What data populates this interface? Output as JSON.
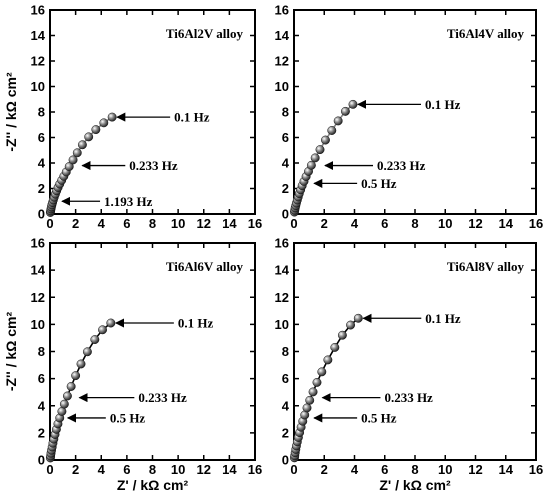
{
  "chart_data": [
    {
      "type": "scatter",
      "panel_label": "Ti6Al2V alloy",
      "xlabel": "",
      "ylabel": "-Z'' / kΩ cm²",
      "xlim": [
        0,
        16
      ],
      "ylim": [
        0,
        16
      ],
      "xticks": [
        "0",
        "2",
        "4",
        "6",
        "8",
        "10",
        "12",
        "14",
        "16"
      ],
      "yticks": [
        "0",
        "2",
        "4",
        "6",
        "8",
        "10",
        "12",
        "14",
        "16"
      ],
      "line_color": "#808080",
      "series": [
        {
          "x": [
            0.03,
            0.05,
            0.08,
            0.11,
            0.15,
            0.2,
            0.26,
            0.33,
            0.42,
            0.52,
            0.63,
            0.76,
            0.91,
            1.08,
            1.27,
            1.5,
            1.8,
            2.13,
            2.53,
            3.02,
            3.58,
            4.2,
            4.85
          ],
          "y": [
            0.12,
            0.25,
            0.4,
            0.55,
            0.72,
            0.9,
            1.1,
            1.32,
            1.56,
            1.82,
            2.08,
            2.35,
            2.64,
            2.96,
            3.3,
            3.72,
            4.24,
            4.8,
            5.43,
            6.05,
            6.62,
            7.15,
            7.6
          ]
        }
      ],
      "annotations": [
        {
          "text": "0.1 Hz",
          "x": 4.85,
          "y": 7.6
        },
        {
          "text": "0.233 Hz",
          "x": 2.13,
          "y": 3.8
        },
        {
          "text": "1.193 Hz",
          "x": 0.55,
          "y": 1.0
        }
      ]
    },
    {
      "type": "scatter",
      "panel_label": "Ti6Al4V alloy",
      "xlabel": "",
      "ylabel": "",
      "xlim": [
        0,
        16
      ],
      "ylim": [
        0,
        16
      ],
      "xticks": [
        "0",
        "2",
        "4",
        "6",
        "8",
        "10",
        "12",
        "14",
        "16"
      ],
      "yticks": [
        "0",
        "2",
        "4",
        "6",
        "8",
        "10",
        "12",
        "14",
        "16"
      ],
      "line_color": "#808080",
      "series": [
        {
          "x": [
            0.03,
            0.05,
            0.08,
            0.12,
            0.16,
            0.22,
            0.28,
            0.35,
            0.44,
            0.54,
            0.66,
            0.8,
            0.96,
            1.15,
            1.4,
            1.72,
            2.08,
            2.5,
            2.92,
            3.4,
            3.9
          ],
          "y": [
            0.15,
            0.3,
            0.48,
            0.66,
            0.86,
            1.1,
            1.34,
            1.6,
            1.9,
            2.22,
            2.56,
            2.94,
            3.34,
            3.82,
            4.4,
            5.05,
            5.8,
            6.55,
            7.3,
            8.05,
            8.6
          ]
        }
      ],
      "annotations": [
        {
          "text": "0.1 Hz",
          "x": 3.9,
          "y": 8.6
        },
        {
          "text": "0.233 Hz",
          "x": 1.72,
          "y": 3.8
        },
        {
          "text": "0.5 Hz",
          "x": 1.0,
          "y": 2.4
        }
      ]
    },
    {
      "type": "scatter",
      "panel_label": "Ti6Al6V alloy",
      "xlabel": "Z' / kΩ cm²",
      "ylabel": "-Z'' / kΩ cm²",
      "xlim": [
        0,
        16
      ],
      "ylim": [
        0,
        16
      ],
      "xticks": [
        "0",
        "2",
        "4",
        "6",
        "8",
        "10",
        "12",
        "14",
        "16"
      ],
      "yticks": [
        "0",
        "2",
        "4",
        "6",
        "8",
        "10",
        "12",
        "14",
        "16"
      ],
      "line_color": "#000000",
      "series": [
        {
          "x": [
            0.03,
            0.05,
            0.08,
            0.12,
            0.17,
            0.23,
            0.3,
            0.39,
            0.5,
            0.62,
            0.76,
            0.93,
            1.12,
            1.36,
            1.65,
            2.0,
            2.42,
            2.92,
            3.5,
            4.1,
            4.75
          ],
          "y": [
            0.15,
            0.3,
            0.5,
            0.72,
            0.96,
            1.24,
            1.54,
            1.88,
            2.26,
            2.66,
            3.1,
            3.58,
            4.12,
            4.72,
            5.42,
            6.22,
            7.08,
            7.98,
            8.88,
            9.6,
            10.1
          ]
        }
      ],
      "annotations": [
        {
          "text": "0.1 Hz",
          "x": 4.75,
          "y": 10.1
        },
        {
          "text": "0.233 Hz",
          "x": 1.9,
          "y": 4.6
        },
        {
          "text": "0.5 Hz",
          "x": 1.0,
          "y": 3.1
        }
      ]
    },
    {
      "type": "scatter",
      "panel_label": "Ti6Al8V alloy",
      "xlabel": "Z' / kΩ cm²",
      "ylabel": "",
      "xlim": [
        0,
        16
      ],
      "ylim": [
        0,
        16
      ],
      "xticks": [
        "0",
        "2",
        "4",
        "6",
        "8",
        "10",
        "12",
        "14",
        "16"
      ],
      "yticks": [
        "0",
        "2",
        "4",
        "6",
        "8",
        "10",
        "12",
        "14",
        "16"
      ],
      "line_color": "#000000",
      "series": [
        {
          "x": [
            0.03,
            0.05,
            0.08,
            0.12,
            0.16,
            0.22,
            0.29,
            0.37,
            0.47,
            0.58,
            0.71,
            0.86,
            1.04,
            1.26,
            1.52,
            1.84,
            2.24,
            2.7,
            3.2,
            3.74,
            4.25
          ],
          "y": [
            0.16,
            0.32,
            0.54,
            0.78,
            1.04,
            1.34,
            1.66,
            2.02,
            2.42,
            2.86,
            3.32,
            3.84,
            4.4,
            5.02,
            5.72,
            6.5,
            7.38,
            8.3,
            9.2,
            9.95,
            10.45
          ]
        }
      ],
      "annotations": [
        {
          "text": "0.1 Hz",
          "x": 4.25,
          "y": 10.45
        },
        {
          "text": "0.233 Hz",
          "x": 1.55,
          "y": 4.6
        },
        {
          "text": "0.5 Hz",
          "x": 1.0,
          "y": 3.1
        }
      ]
    }
  ]
}
